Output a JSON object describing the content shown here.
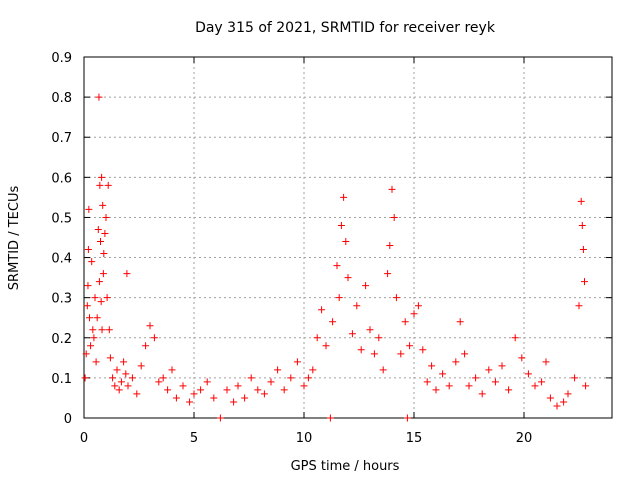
{
  "chart_data": {
    "type": "scatter",
    "title": "Day 315 of 2021, SRMTID for receiver reyk",
    "xlabel": "GPS time / hours",
    "ylabel": "SRMTID / TECUs",
    "xlim": [
      0,
      24
    ],
    "ylim": [
      0,
      0.9
    ],
    "x_ticks": [
      0,
      5,
      10,
      15,
      20
    ],
    "y_ticks": [
      "0",
      "0.1",
      "0.2",
      "0.3",
      "0.4",
      "0.5",
      "0.6",
      "0.7",
      "0.8",
      "0.9"
    ],
    "grid": true,
    "marker": "+",
    "color": "#ff0000",
    "series": [
      {
        "name": "SRMTID",
        "points": [
          [
            0.05,
            0.1
          ],
          [
            0.1,
            0.16
          ],
          [
            0.15,
            0.28
          ],
          [
            0.18,
            0.33
          ],
          [
            0.2,
            0.42
          ],
          [
            0.22,
            0.52
          ],
          [
            0.25,
            0.25
          ],
          [
            0.3,
            0.18
          ],
          [
            0.35,
            0.39
          ],
          [
            0.4,
            0.22
          ],
          [
            0.45,
            0.2
          ],
          [
            0.5,
            0.3
          ],
          [
            0.55,
            0.14
          ],
          [
            0.6,
            0.25
          ],
          [
            0.65,
            0.47
          ],
          [
            0.68,
            0.8
          ],
          [
            0.7,
            0.34
          ],
          [
            0.72,
            0.58
          ],
          [
            0.75,
            0.44
          ],
          [
            0.78,
            0.29
          ],
          [
            0.8,
            0.6
          ],
          [
            0.82,
            0.22
          ],
          [
            0.85,
            0.53
          ],
          [
            0.88,
            0.36
          ],
          [
            0.9,
            0.41
          ],
          [
            0.95,
            0.46
          ],
          [
            1.0,
            0.5
          ],
          [
            1.05,
            0.3
          ],
          [
            1.1,
            0.58
          ],
          [
            1.15,
            0.22
          ],
          [
            1.2,
            0.15
          ],
          [
            1.3,
            0.1
          ],
          [
            1.4,
            0.08
          ],
          [
            1.5,
            0.12
          ],
          [
            1.6,
            0.07
          ],
          [
            1.7,
            0.09
          ],
          [
            1.8,
            0.14
          ],
          [
            1.9,
            0.11
          ],
          [
            1.95,
            0.36
          ],
          [
            2.0,
            0.08
          ],
          [
            2.2,
            0.1
          ],
          [
            2.4,
            0.06
          ],
          [
            2.6,
            0.13
          ],
          [
            2.8,
            0.18
          ],
          [
            3.0,
            0.23
          ],
          [
            3.2,
            0.2
          ],
          [
            3.4,
            0.09
          ],
          [
            3.6,
            0.1
          ],
          [
            3.8,
            0.07
          ],
          [
            4.0,
            0.12
          ],
          [
            4.2,
            0.05
          ],
          [
            4.5,
            0.08
          ],
          [
            4.8,
            0.04
          ],
          [
            5.0,
            0.06
          ],
          [
            5.3,
            0.07
          ],
          [
            5.6,
            0.09
          ],
          [
            5.9,
            0.05
          ],
          [
            6.2,
            0.0
          ],
          [
            6.5,
            0.07
          ],
          [
            6.8,
            0.04
          ],
          [
            7.0,
            0.08
          ],
          [
            7.3,
            0.05
          ],
          [
            7.6,
            0.1
          ],
          [
            7.9,
            0.07
          ],
          [
            8.2,
            0.06
          ],
          [
            8.5,
            0.09
          ],
          [
            8.8,
            0.12
          ],
          [
            9.1,
            0.07
          ],
          [
            9.4,
            0.1
          ],
          [
            9.7,
            0.14
          ],
          [
            10.0,
            0.08
          ],
          [
            10.2,
            0.1
          ],
          [
            10.4,
            0.12
          ],
          [
            10.6,
            0.2
          ],
          [
            10.8,
            0.27
          ],
          [
            11.0,
            0.18
          ],
          [
            11.2,
            0.0
          ],
          [
            11.3,
            0.24
          ],
          [
            11.5,
            0.38
          ],
          [
            11.6,
            0.3
          ],
          [
            11.7,
            0.48
          ],
          [
            11.8,
            0.55
          ],
          [
            11.9,
            0.44
          ],
          [
            12.0,
            0.35
          ],
          [
            12.2,
            0.21
          ],
          [
            12.4,
            0.28
          ],
          [
            12.6,
            0.17
          ],
          [
            12.8,
            0.33
          ],
          [
            13.0,
            0.22
          ],
          [
            13.2,
            0.16
          ],
          [
            13.4,
            0.2
          ],
          [
            13.6,
            0.12
          ],
          [
            13.8,
            0.36
          ],
          [
            13.9,
            0.43
          ],
          [
            14.0,
            0.57
          ],
          [
            14.1,
            0.5
          ],
          [
            14.2,
            0.3
          ],
          [
            14.4,
            0.16
          ],
          [
            14.6,
            0.24
          ],
          [
            14.7,
            0.0
          ],
          [
            14.8,
            0.18
          ],
          [
            15.0,
            0.26
          ],
          [
            15.2,
            0.28
          ],
          [
            15.4,
            0.17
          ],
          [
            15.6,
            0.09
          ],
          [
            15.8,
            0.13
          ],
          [
            16.0,
            0.07
          ],
          [
            16.3,
            0.11
          ],
          [
            16.6,
            0.08
          ],
          [
            16.9,
            0.14
          ],
          [
            17.1,
            0.24
          ],
          [
            17.3,
            0.16
          ],
          [
            17.5,
            0.08
          ],
          [
            17.8,
            0.1
          ],
          [
            18.1,
            0.06
          ],
          [
            18.4,
            0.12
          ],
          [
            18.7,
            0.09
          ],
          [
            19.0,
            0.13
          ],
          [
            19.3,
            0.07
          ],
          [
            19.6,
            0.2
          ],
          [
            19.9,
            0.15
          ],
          [
            20.2,
            0.11
          ],
          [
            20.5,
            0.08
          ],
          [
            20.8,
            0.09
          ],
          [
            21.0,
            0.14
          ],
          [
            21.2,
            0.05
          ],
          [
            21.5,
            0.03
          ],
          [
            21.8,
            0.04
          ],
          [
            22.0,
            0.06
          ],
          [
            22.3,
            0.1
          ],
          [
            22.5,
            0.28
          ],
          [
            22.6,
            0.54
          ],
          [
            22.65,
            0.48
          ],
          [
            22.7,
            0.42
          ],
          [
            22.75,
            0.34
          ],
          [
            22.8,
            0.08
          ]
        ]
      }
    ]
  }
}
